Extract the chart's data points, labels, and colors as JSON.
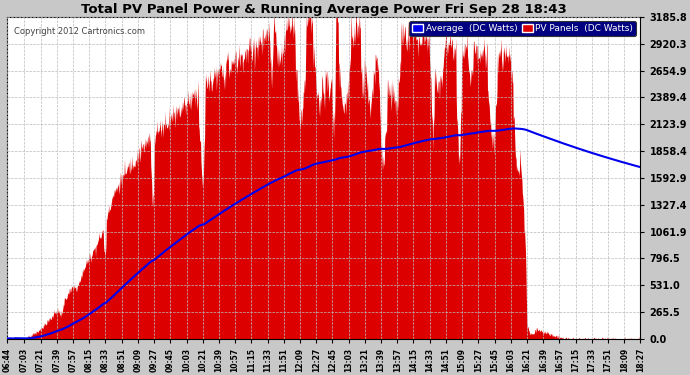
{
  "title": "Total PV Panel Power & Running Average Power Fri Sep 28 18:43",
  "copyright": "Copyright 2012 Cartronics.com",
  "legend_avg": "Average  (DC Watts)",
  "legend_pv": "PV Panels  (DC Watts)",
  "yticks": [
    0.0,
    265.5,
    531.0,
    796.5,
    1061.9,
    1327.4,
    1592.9,
    1858.4,
    2123.9,
    2389.4,
    2654.9,
    2920.3,
    3185.8
  ],
  "ymax": 3185.8,
  "bg_color": "#c8c8c8",
  "plot_bg_color": "#ffffff",
  "fill_color": "#dd0000",
  "avg_line_color": "#0000ee",
  "grid_color": "#bbbbbb",
  "title_color": "#000000",
  "copyright_color": "#444444",
  "xtick_labels": [
    "06:44",
    "07:03",
    "07:21",
    "07:39",
    "07:57",
    "08:15",
    "08:33",
    "08:51",
    "09:09",
    "09:27",
    "09:45",
    "10:03",
    "10:21",
    "10:39",
    "10:57",
    "11:15",
    "11:33",
    "11:51",
    "12:09",
    "12:27",
    "12:45",
    "13:03",
    "13:21",
    "13:39",
    "13:57",
    "14:15",
    "14:33",
    "14:51",
    "15:09",
    "15:27",
    "15:45",
    "16:03",
    "16:21",
    "16:39",
    "16:57",
    "17:15",
    "17:33",
    "17:51",
    "18:09",
    "18:27"
  ]
}
